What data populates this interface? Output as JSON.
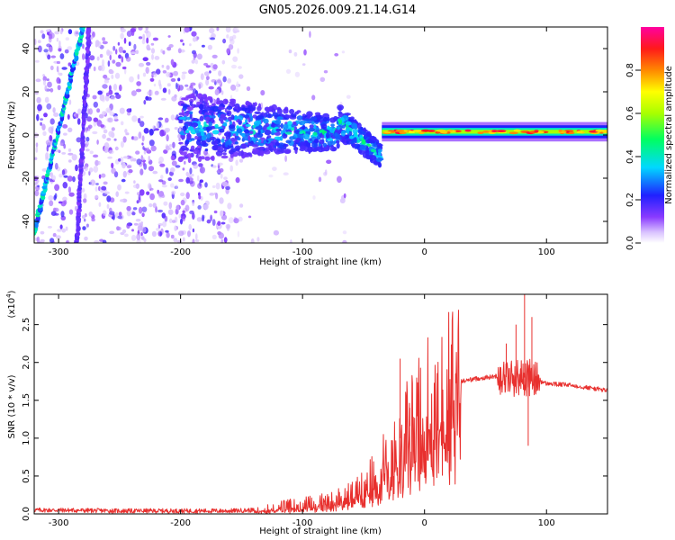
{
  "title": "GN05.2026.009.21.14.G14",
  "chart_data": [
    {
      "type": "heatmap",
      "name": "spectrogram",
      "xlabel": "Height of straight line (km)",
      "ylabel": "Frequency (Hz)",
      "xlim": [
        -320,
        150
      ],
      "ylim": [
        -50,
        50
      ],
      "xticks": [
        -300,
        -200,
        -100,
        0,
        100
      ],
      "yticks": [
        -40,
        -20,
        0,
        20,
        40
      ],
      "features": {
        "noise_region_km": [
          -320,
          -160
        ],
        "converging_band_km": [
          -200,
          -35
        ],
        "steady_line_km": [
          -35,
          150
        ],
        "steady_line_hz": 1.5,
        "oblique_tracks": [
          {
            "from_km": -320,
            "from_hz": -45,
            "to_km": -280,
            "to_hz": 50
          },
          {
            "from_km": -285,
            "from_hz": -50,
            "to_km": -275,
            "to_hz": 50
          }
        ]
      },
      "colorbar": {
        "label": "Normalized spectral amplitude",
        "range": [
          0.0,
          1.0
        ],
        "ticks": [
          "0.0",
          "0.2",
          "0.4",
          "0.6",
          "0.8"
        ]
      }
    },
    {
      "type": "line",
      "name": "snr",
      "xlabel": "Height of straight line (km)",
      "ylabel": "SNR (10 * v/v)",
      "scale_label": "(x10",
      "scale_exp": "4",
      "scale_close": ")",
      "xlim": [
        -320,
        150
      ],
      "ylim": [
        0,
        2.9
      ],
      "xticks": [
        -300,
        -200,
        -100,
        0,
        100
      ],
      "yticks": [
        "0.0",
        "0.5",
        "1.0",
        "1.5",
        "2.0",
        "2.5"
      ],
      "color": "#e8302e",
      "series": [
        {
          "name": "SNR",
          "x": [
            -320,
            -300,
            -250,
            -200,
            -160,
            -140,
            -120,
            -100,
            -80,
            -60,
            -50,
            -40,
            -30,
            -20,
            -10,
            0,
            10,
            20,
            30,
            40,
            50,
            60,
            70,
            75,
            80,
            85,
            90,
            95,
            100,
            120,
            150
          ],
          "y": [
            0.05,
            0.05,
            0.04,
            0.04,
            0.04,
            0.05,
            0.08,
            0.12,
            0.15,
            0.25,
            0.35,
            0.5,
            0.75,
            1.0,
            1.2,
            1.4,
            1.6,
            1.7,
            1.75,
            1.78,
            1.8,
            1.82,
            1.8,
            1.8,
            1.8,
            1.8,
            1.78,
            1.75,
            1.72,
            1.7,
            1.63
          ]
        }
      ],
      "peaks": [
        {
          "x": -20,
          "y": 2.05
        },
        {
          "x": -12,
          "y": 1.4
        },
        {
          "x": 67,
          "y": 2.25
        },
        {
          "x": 75,
          "y": 2.5
        },
        {
          "x": 82,
          "y": 2.9
        },
        {
          "x": 85,
          "y": 0.9
        },
        {
          "x": 88,
          "y": 2.6
        }
      ]
    }
  ]
}
